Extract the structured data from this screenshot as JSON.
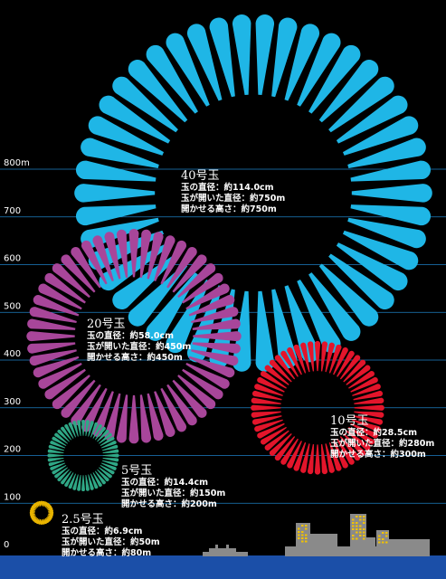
{
  "chart_data": {
    "type": "scatter",
    "yaxis": {
      "ticks": [
        {
          "value": 0,
          "label": "0"
        },
        {
          "value": 100,
          "label": "100"
        },
        {
          "value": 200,
          "label": "200"
        },
        {
          "value": 300,
          "label": "300"
        },
        {
          "value": 400,
          "label": "400"
        },
        {
          "value": 500,
          "label": "500"
        },
        {
          "value": 600,
          "label": "600"
        },
        {
          "value": 700,
          "label": "700"
        },
        {
          "value": 800,
          "label": "800m"
        }
      ],
      "ylim": [
        0,
        800
      ],
      "grid": true
    },
    "fireworks": [
      {
        "name": "40号玉",
        "lines": [
          "玉の直径：約114.0cm",
          "玉が開いた直径：約750m",
          "開かせる高さ：約750m"
        ],
        "shell_diameter_cm": 114.0,
        "open_diameter_m": 750,
        "height_m": 750,
        "color": "#1fb6e6"
      },
      {
        "name": "20号玉",
        "lines": [
          "玉の直径：約58.0cm",
          "玉が開いた直径：約450m",
          "開かせる高さ：約450m"
        ],
        "shell_diameter_cm": 58.0,
        "open_diameter_m": 450,
        "height_m": 450,
        "color": "#a8469a"
      },
      {
        "name": "10号玉",
        "lines": [
          "玉の直径：約28.5cm",
          "玉が開いた直径：約280m",
          "開かせる高さ：約300m"
        ],
        "shell_diameter_cm": 28.5,
        "open_diameter_m": 280,
        "height_m": 300,
        "color": "#e3152b"
      },
      {
        "name": "5号玉",
        "lines": [
          "玉の直径：約14.4cm",
          "玉が開いた直径：約150m",
          "開かせる高さ：約200m"
        ],
        "shell_diameter_cm": 14.4,
        "open_diameter_m": 150,
        "height_m": 200,
        "color": "#2fa886"
      },
      {
        "name": "2.5号玉",
        "lines": [
          "玉の直径：約6.9cm",
          "玉が開いた直径：約50m",
          "開かせる高さ：約80m"
        ],
        "shell_diameter_cm": 6.9,
        "open_diameter_m": 50,
        "height_m": 80,
        "color": "#e8b400"
      }
    ]
  },
  "colors": {
    "background": "#000000",
    "gridline": "#1e7fc4",
    "water": "#1b4fa8",
    "building": "#8a8a8a",
    "window_lit": "#f2c200"
  }
}
